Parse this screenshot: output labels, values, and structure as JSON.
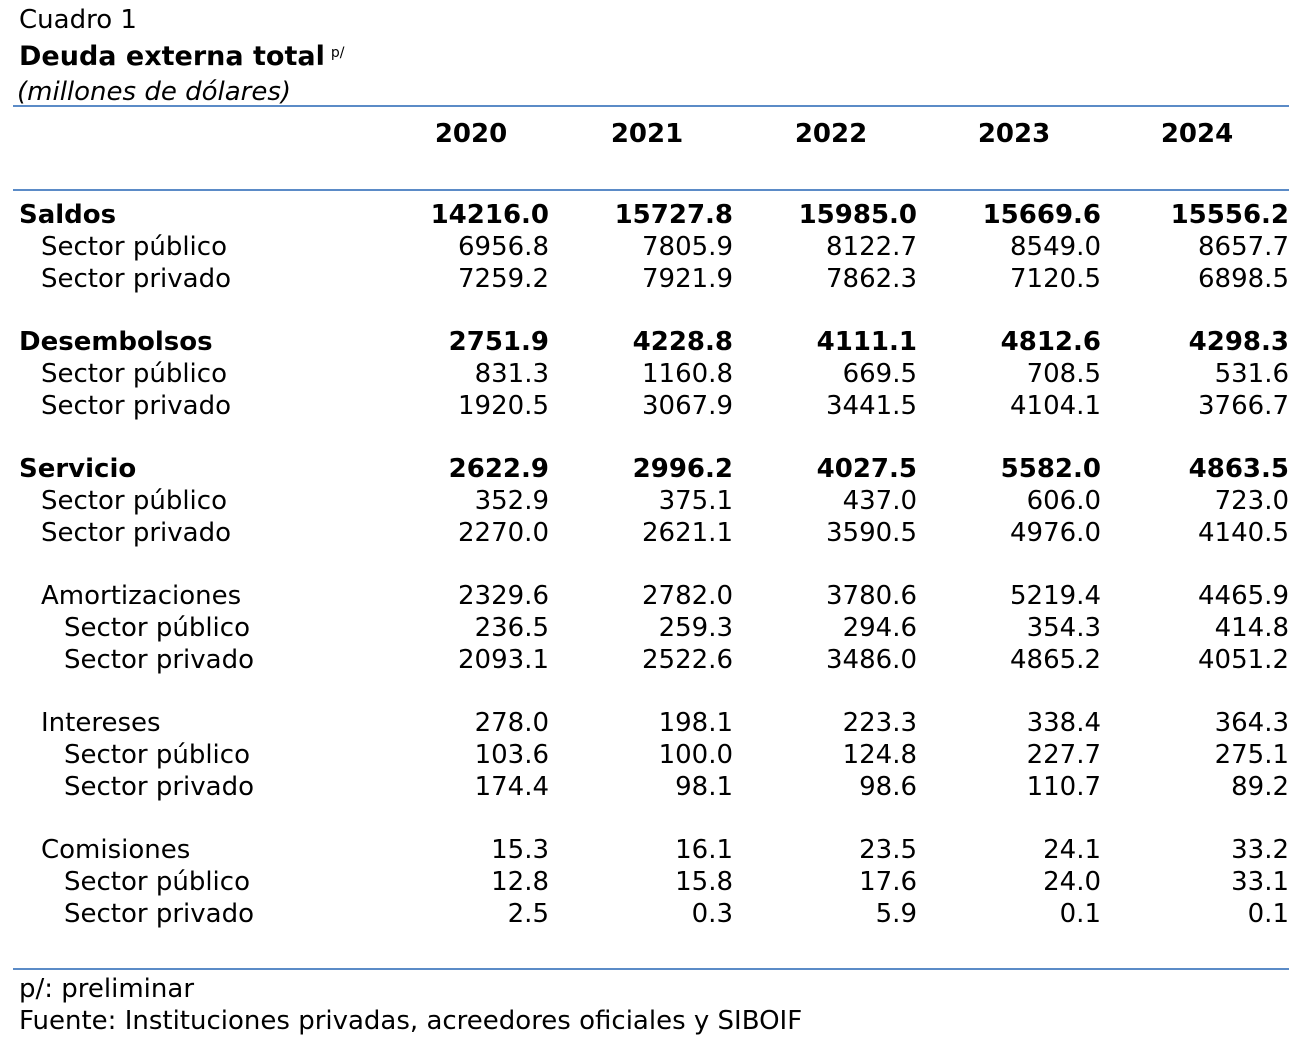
{
  "header": {
    "cuadro": "Cuadro 1",
    "title": "Deuda externa total",
    "title_mark": "p/",
    "units": "(millones de dólares)"
  },
  "columns": [
    "2020",
    "2021",
    "2022",
    "2023",
    "2024"
  ],
  "rows": [
    {
      "label": "Saldos",
      "level": 0,
      "bold": true,
      "values": [
        "14216.0",
        "15727.8",
        "15985.0",
        "15669.6",
        "15556.2"
      ]
    },
    {
      "label": "Sector público",
      "level": 1,
      "bold": false,
      "values": [
        "6956.8",
        "7805.9",
        "8122.7",
        "8549.0",
        "8657.7"
      ]
    },
    {
      "label": "Sector privado",
      "level": 1,
      "bold": false,
      "values": [
        "7259.2",
        "7921.9",
        "7862.3",
        "7120.5",
        "6898.5"
      ]
    },
    {
      "label": "Desembolsos",
      "level": 0,
      "bold": true,
      "values": [
        "2751.9",
        "4228.8",
        "4111.1",
        "4812.6",
        "4298.3"
      ]
    },
    {
      "label": "Sector público",
      "level": 1,
      "bold": false,
      "values": [
        "831.3",
        "1160.8",
        "669.5",
        "708.5",
        "531.6"
      ]
    },
    {
      "label": "Sector privado",
      "level": 1,
      "bold": false,
      "values": [
        "1920.5",
        "3067.9",
        "3441.5",
        "4104.1",
        "3766.7"
      ]
    },
    {
      "label": "Servicio",
      "level": 0,
      "bold": true,
      "values": [
        "2622.9",
        "2996.2",
        "4027.5",
        "5582.0",
        "4863.5"
      ]
    },
    {
      "label": "Sector público",
      "level": 1,
      "bold": false,
      "values": [
        "352.9",
        "375.1",
        "437.0",
        "606.0",
        "723.0"
      ]
    },
    {
      "label": "Sector privado",
      "level": 1,
      "bold": false,
      "values": [
        "2270.0",
        "2621.1",
        "3590.5",
        "4976.0",
        "4140.5"
      ]
    },
    {
      "label": "Amortizaciones",
      "level": 1,
      "bold": false,
      "values": [
        "2329.6",
        "2782.0",
        "3780.6",
        "5219.4",
        "4465.9"
      ]
    },
    {
      "label": "Sector público",
      "level": 2,
      "bold": false,
      "values": [
        "236.5",
        "259.3",
        "294.6",
        "354.3",
        "414.8"
      ]
    },
    {
      "label": "Sector privado",
      "level": 2,
      "bold": false,
      "values": [
        "2093.1",
        "2522.6",
        "3486.0",
        "4865.2",
        "4051.2"
      ]
    },
    {
      "label": "Intereses",
      "level": 1,
      "bold": false,
      "values": [
        "278.0",
        "198.1",
        "223.3",
        "338.4",
        "364.3"
      ]
    },
    {
      "label": "Sector público",
      "level": 2,
      "bold": false,
      "values": [
        "103.6",
        "100.0",
        "124.8",
        "227.7",
        "275.1"
      ]
    },
    {
      "label": "Sector privado",
      "level": 2,
      "bold": false,
      "values": [
        "174.4",
        "98.1",
        "98.6",
        "110.7",
        "89.2"
      ]
    },
    {
      "label": "Comisiones",
      "level": 1,
      "bold": false,
      "values": [
        "15.3",
        "16.1",
        "23.5",
        "24.1",
        "33.2"
      ]
    },
    {
      "label": "Sector público",
      "level": 2,
      "bold": false,
      "values": [
        "12.8",
        "15.8",
        "17.6",
        "24.0",
        "33.1"
      ]
    },
    {
      "label": "Sector privado",
      "level": 2,
      "bold": false,
      "values": [
        "2.5",
        "0.3",
        "5.9",
        "0.1",
        "0.1"
      ]
    }
  ],
  "notes": {
    "preliminar": "p/: preliminar",
    "fuente": "Fuente: Instituciones privadas, acreedores oficiales y SIBOIF"
  },
  "colors": {
    "rule": "#5b8bc7"
  }
}
